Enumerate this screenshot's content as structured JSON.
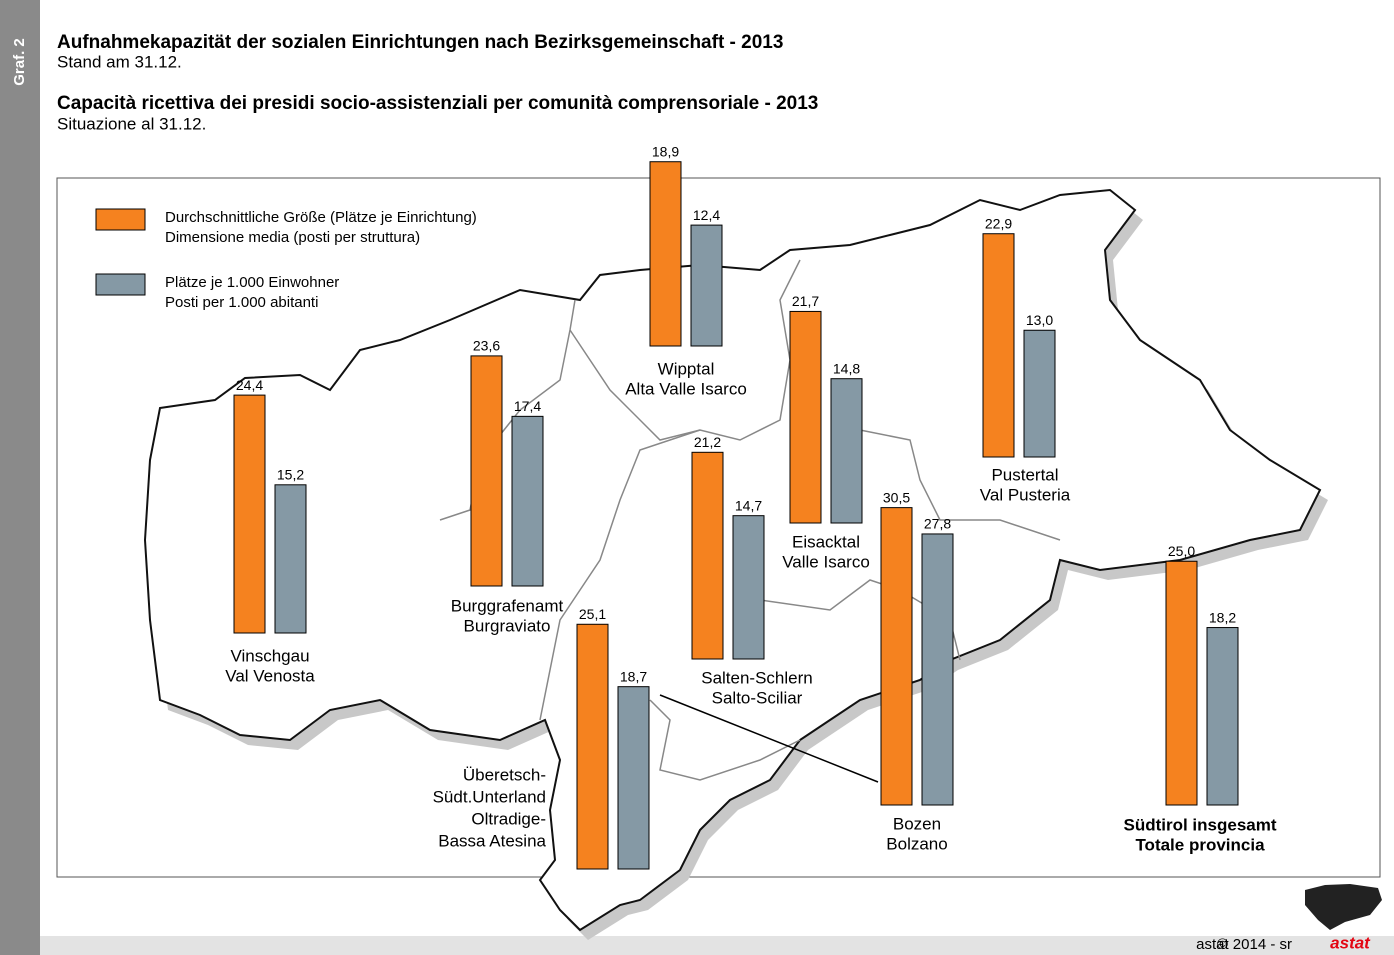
{
  "side_label": "Graf. 2",
  "footer": {
    "copyright": "©",
    "credit": "astat 2014 - sr",
    "logo": "astat"
  },
  "chart_data": {
    "type": "map-bar",
    "title": "Aufnahmekapazität der sozialen Einrichtungen nach Bezirksgemeinschaft - 2013",
    "subtitle": "Stand am 31.12.",
    "title_it": "Capacità ricettiva dei presidi socio-assistenziali per comunità comprensoriale - 2013",
    "subtitle_it": "Situazione al 31.12.",
    "categories": [
      [
        "Vinschgau",
        "Val Venosta"
      ],
      [
        "Burggrafenamt",
        "Burgraviato"
      ],
      [
        "Wipptal",
        "Alta Valle Isarco"
      ],
      [
        "Eisacktal",
        "Valle Isarco"
      ],
      [
        "Pustertal",
        "Val Pusteria"
      ],
      [
        "Salten-Schlern",
        "Salto-Sciliar"
      ],
      [
        "Überetsch-",
        "Südt.Unterland",
        "Oltradige-",
        "Bassa Atesina"
      ],
      [
        "Bozen",
        "Bolzano"
      ],
      [
        "Südtirol insgesamt",
        "Totale provincia"
      ]
    ],
    "series": [
      {
        "name": [
          "Durchschnittliche Größe (Plätze je Einrichtung)",
          "Dimensione media (posti per struttura)"
        ],
        "color": "#f5821f",
        "values": [
          24.4,
          23.6,
          18.9,
          21.7,
          22.9,
          21.2,
          25.1,
          30.5,
          25.0
        ],
        "value_labels": [
          "24,4",
          "23,6",
          "18,9",
          "21,7",
          "22,9",
          "21,2",
          "25,1",
          "30,5",
          "25,0"
        ]
      },
      {
        "name": [
          "Plätze je 1.000 Einwohner",
          "Posti per 1.000 abitanti"
        ],
        "color": "#8599a5",
        "values": [
          15.2,
          17.4,
          12.4,
          14.8,
          13.0,
          14.7,
          18.7,
          27.8,
          18.2
        ],
        "value_labels": [
          "15,2",
          "17,4",
          "12,4",
          "14,8",
          "13,0",
          "14,7",
          "18,7",
          "27,8",
          "18,2"
        ]
      }
    ]
  }
}
